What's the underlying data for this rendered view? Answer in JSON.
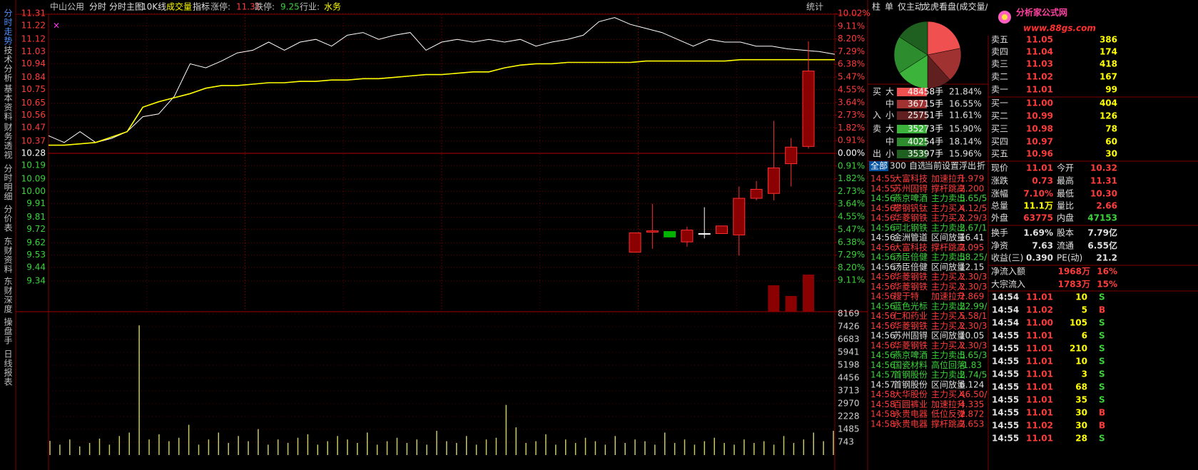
{
  "header": {
    "stock": "中山公用",
    "tabs": [
      "分时",
      "分时主图",
      "10K线",
      "成交量",
      "指标"
    ],
    "limit_up_label": "涨停:",
    "limit_up": "11.31",
    "limit_down_label": "跌停:",
    "limit_down": "9.25",
    "industry_label": "行业:",
    "industry": "水务",
    "stats_button": "统计"
  },
  "side_tabs": [
    "分时走势",
    "技术分析",
    "基本资料",
    "财务透视",
    "分时明细",
    "分价表",
    "东财资料",
    "东财深度",
    "操盘手",
    "日线报表"
  ],
  "right_tabs": [
    "柱",
    "单",
    "仅主动",
    "龙虎看盘(成交量/"
  ],
  "logo": {
    "title": "分析家公式网",
    "url": "www.88gs.com"
  },
  "flow_sides": [
    "买",
    "入",
    "卖",
    "出"
  ],
  "flow_rows": [
    {
      "size": "大",
      "hands": "48458手"
    },
    {
      "size": "中",
      "hands": "36715手"
    },
    {
      "size": "小",
      "hands": "25751手"
    },
    {
      "size": "大",
      "hands": "35273手"
    },
    {
      "size": "中",
      "hands": "40254手"
    },
    {
      "size": "小",
      "hands": "35397手"
    }
  ],
  "list_tabs": [
    "全部",
    "300",
    "自选",
    "当前",
    "设置",
    "浮出",
    "折"
  ],
  "news": [
    {
      "time": "14:55",
      "name": "大富科技",
      "type": "加速拉升",
      "value": "1.979",
      "color": "#ff3c3c"
    },
    {
      "time": "14:55",
      "name": "苏州固锝",
      "type": "撑杆跳高",
      "value": "2.200",
      "color": "#ff3c3c"
    },
    {
      "time": "14:56",
      "name": "燕京啤酒",
      "type": "主力卖出",
      "value": "5.65/5",
      "color": "#3cd23c"
    },
    {
      "time": "14:56",
      "name": "攀钢钒钛",
      "type": "主力买入",
      "value": "4.12/5",
      "color": "#ff3c3c"
    },
    {
      "time": "14:56",
      "name": "华菱钢铁",
      "type": "主力买入",
      "value": "2.29/3",
      "color": "#ff3c3c"
    },
    {
      "time": "14:56",
      "name": "河北钢铁",
      "type": "主力卖出",
      "value": "2.67/1",
      "color": "#3cd23c"
    },
    {
      "time": "14:56",
      "name": "金洲管道",
      "type": "区间放量",
      "value": "16.41",
      "color": "#e0e0e0"
    },
    {
      "time": "14:56",
      "name": "大富科技",
      "type": "撑杆跳高",
      "value": "2.095",
      "color": "#ff3c3c"
    },
    {
      "time": "14:56",
      "name": "汤臣倍健",
      "type": "主力卖出",
      "value": "58.25/",
      "color": "#3cd23c"
    },
    {
      "time": "14:56",
      "name": "汤臣倍健",
      "type": "区间放量",
      "value": "12.15",
      "color": "#e0e0e0"
    },
    {
      "time": "14:56",
      "name": "华菱钢铁",
      "type": "主力买入",
      "value": "2.30/3",
      "color": "#ff3c3c"
    },
    {
      "time": "14:56",
      "name": "华菱钢铁",
      "type": "主力买入",
      "value": "2.30/3",
      "color": "#ff3c3c"
    },
    {
      "time": "14:56",
      "name": "搜于特",
      "type": "加速拉升",
      "value": "2.869",
      "color": "#ff3c3c"
    },
    {
      "time": "14:56",
      "name": "蓝色光标",
      "type": "主力卖出",
      "value": "22.99/",
      "color": "#3cd23c"
    },
    {
      "time": "14:56",
      "name": "仁和药业",
      "type": "主力买入",
      "value": "5.58/1",
      "color": "#ff3c3c"
    },
    {
      "time": "14:56",
      "name": "华菱钢铁",
      "type": "主力买入",
      "value": "2.30/3",
      "color": "#ff3c3c"
    },
    {
      "time": "14:56",
      "name": "苏州固锝",
      "type": "区间放量",
      "value": "10.05",
      "color": "#e0e0e0"
    },
    {
      "time": "14:56",
      "name": "华菱钢铁",
      "type": "主力买入",
      "value": "2.30/3",
      "color": "#ff3c3c"
    },
    {
      "time": "14:56",
      "name": "燕京啤酒",
      "type": "主力卖出",
      "value": "5.65/3",
      "color": "#3cd23c"
    },
    {
      "time": "14:56",
      "name": "国瓷材料",
      "type": "高位回落",
      "value": "-1.83",
      "color": "#3cd23c"
    },
    {
      "time": "14:57",
      "name": "首钢股份",
      "type": "主力卖出",
      "value": "2.74/5",
      "color": "#3cd23c"
    },
    {
      "time": "14:57",
      "name": "首钢股份",
      "type": "区间放量",
      "value": "6.124",
      "color": "#e0e0e0"
    },
    {
      "time": "14:58",
      "name": "大华股份",
      "type": "主力买入",
      "value": "46.50/",
      "color": "#ff3c3c"
    },
    {
      "time": "14:58",
      "name": "百圆裤业",
      "type": "加速拉升",
      "value": "4.335",
      "color": "#ff3c3c"
    },
    {
      "time": "14:58",
      "name": "永贵电器",
      "type": "低位反弹",
      "value": "2.872",
      "color": "#ff3c3c"
    },
    {
      "time": "14:58",
      "name": "永贵电器",
      "type": "撑杆跳高",
      "value": "2.653",
      "color": "#ff3c3c"
    }
  ],
  "order_book": [
    {
      "label": "卖五",
      "price": "11.05",
      "volume": "386"
    },
    {
      "label": "卖四",
      "price": "11.04",
      "volume": "174"
    },
    {
      "label": "卖三",
      "price": "11.03",
      "volume": "418"
    },
    {
      "label": "卖二",
      "price": "11.02",
      "volume": "167"
    },
    {
      "label": "卖一",
      "price": "11.01",
      "volume": "99"
    },
    {
      "label": "买一",
      "price": "11.00",
      "volume": "404"
    },
    {
      "label": "买二",
      "price": "10.99",
      "volume": "126"
    },
    {
      "label": "买三",
      "price": "10.98",
      "volume": "78"
    },
    {
      "label": "买四",
      "price": "10.97",
      "volume": "60"
    },
    {
      "label": "买五",
      "price": "10.96",
      "volume": "30"
    }
  ],
  "stats": [
    [
      {
        "label": "现价",
        "value": "11.01",
        "color": "#ff3c3c"
      },
      {
        "label": "今开",
        "value": "10.32",
        "color": "#ff3c3c"
      }
    ],
    [
      {
        "label": "涨跌",
        "value": "0.73",
        "color": "#ff3c3c"
      },
      {
        "label": "最高",
        "value": "11.31",
        "color": "#ff3c3c"
      }
    ],
    [
      {
        "label": "涨幅",
        "value": "7.10%",
        "color": "#ff3c3c"
      },
      {
        "label": "最低",
        "value": "10.30",
        "color": "#ff3c3c"
      }
    ],
    [
      {
        "label": "总量",
        "value": "11.1万",
        "color": "#ffff00"
      },
      {
        "label": "量比",
        "value": "2.66",
        "color": "#ff3c3c"
      }
    ],
    [
      {
        "label": "外盘",
        "value": "63775",
        "color": "#ff3c3c"
      },
      {
        "label": "内盘",
        "value": "47153",
        "color": "#3cd23c"
      }
    ],
    [
      {
        "label": "换手",
        "value": "1.69%",
        "color": "#e0e0e0"
      },
      {
        "label": "股本",
        "value": "7.79亿",
        "color": "#e0e0e0"
      }
    ],
    [
      {
        "label": "净资",
        "value": "7.63",
        "color": "#e0e0e0"
      },
      {
        "label": "流通",
        "value": "6.55亿",
        "color": "#e0e0e0"
      }
    ],
    [
      {
        "label": "收益(三)",
        "value": "0.390",
        "color": "#e0e0e0"
      },
      {
        "label": "PE(动)",
        "value": "21.2",
        "color": "#e0e0e0"
      }
    ]
  ],
  "flows": [
    {
      "label": "净流入额",
      "value": "1968万",
      "share": "16%"
    },
    {
      "label": "大宗流入",
      "value": "1783万",
      "share": "15%"
    }
  ],
  "trades": [
    {
      "time": "14:54",
      "price": "11.01",
      "volume": "10",
      "side": "S"
    },
    {
      "time": "14:54",
      "price": "11.02",
      "volume": "5",
      "side": "B"
    },
    {
      "time": "14:54",
      "price": "11.00",
      "volume": "105",
      "side": "S"
    },
    {
      "time": "14:55",
      "price": "11.01",
      "volume": "6",
      "side": "S"
    },
    {
      "time": "14:55",
      "price": "11.01",
      "volume": "210",
      "side": "S"
    },
    {
      "time": "14:55",
      "price": "11.01",
      "volume": "10",
      "side": "S"
    },
    {
      "time": "14:55",
      "price": "11.01",
      "volume": "3",
      "side": "S"
    },
    {
      "time": "14:55",
      "price": "11.01",
      "volume": "68",
      "side": "S"
    },
    {
      "time": "14:55",
      "price": "11.01",
      "volume": "35",
      "side": "S"
    },
    {
      "time": "14:55",
      "price": "11.01",
      "volume": "30",
      "side": "B"
    },
    {
      "time": "14:55",
      "price": "11.02",
      "volume": "30",
      "side": "B"
    },
    {
      "time": "14:55",
      "price": "11.01",
      "volume": "28",
      "side": "S"
    }
  ],
  "chart_data": [
    {
      "type": "line",
      "ylim": [
        9.25,
        11.31
      ],
      "yticks": [
        11.31,
        11.22,
        11.12,
        11.03,
        10.94,
        10.84,
        10.75,
        10.65,
        10.56,
        10.47,
        10.37,
        10.28,
        10.19,
        10.09,
        {
          "value": 10,
          "label": "10.00"
        },
        9.91,
        9.81,
        9.72,
        9.62,
        9.53,
        9.44,
        9.34
      ],
      "y2lim": [
        -10.02,
        10.02
      ],
      "y2ticks": [
        {
          "value": 10.02,
          "label": "10.02%"
        },
        {
          "value": 9.11,
          "label": "9.11%"
        },
        {
          "value": 8.2,
          "label": "8.20%"
        },
        {
          "value": 7.29,
          "label": "7.29%"
        },
        {
          "value": 6.38,
          "label": "6.38%"
        },
        {
          "value": 5.47,
          "label": "5.47%"
        },
        {
          "value": 4.55,
          "label": "4.55%"
        },
        {
          "value": 3.64,
          "label": "3.64%"
        },
        {
          "value": 2.73,
          "label": "2.73%"
        },
        {
          "value": 1.82,
          "label": "1.82%"
        },
        {
          "value": 0.91,
          "label": "0.91%"
        },
        {
          "value": 0,
          "label": "0.00%"
        },
        {
          "value": -0.91,
          "label": "0.91%"
        },
        {
          "value": -1.82,
          "label": "1.82%"
        },
        {
          "value": -2.73,
          "label": "2.73%"
        },
        {
          "value": -3.64,
          "label": "3.64%"
        },
        {
          "value": -4.55,
          "label": "4.55%"
        },
        {
          "value": -5.47,
          "label": "5.47%"
        },
        {
          "value": -6.38,
          "label": "6.38%"
        },
        {
          "value": -7.29,
          "label": "7.29%"
        },
        {
          "value": -8.2,
          "label": "8.20%"
        },
        {
          "value": -9.11,
          "label": "9.11%"
        }
      ],
      "grid": true,
      "series": [
        {
          "color": "#ffffff",
          "values": [
            10.41,
            10.36,
            10.44,
            10.36,
            10.39,
            10.44,
            10.55,
            10.57,
            10.7,
            10.94,
            10.91,
            10.96,
            11.02,
            11.04,
            11.1,
            11.04,
            11.1,
            11.12,
            11.07,
            11.15,
            11.17,
            11.12,
            11.15,
            11.17,
            11.04,
            11.1,
            11.12,
            11.1,
            11.12,
            11.1,
            11.12,
            11.07,
            11.1,
            11.12,
            11.15,
            11.25,
            11.28,
            11.23,
            11.2,
            11.17,
            11.12,
            11.07,
            11.12,
            11.1,
            11.1,
            11.07,
            11.07,
            11.05,
            11.04,
            11.03,
            11.01
          ]
        },
        {
          "color": "#ffff00",
          "values": [
            10.34,
            10.34,
            10.35,
            10.36,
            10.4,
            10.44,
            10.62,
            10.66,
            10.69,
            10.72,
            10.76,
            10.78,
            10.78,
            10.79,
            10.8,
            10.8,
            10.81,
            10.81,
            10.82,
            10.82,
            10.83,
            10.83,
            10.84,
            10.85,
            10.86,
            10.86,
            10.87,
            10.88,
            10.88,
            10.91,
            10.93,
            10.94,
            10.94,
            10.95,
            10.95,
            10.95,
            10.95,
            10.95,
            10.96,
            10.96,
            10.96,
            10.96,
            10.96,
            10.96,
            10.97,
            10.97,
            10.97,
            10.97,
            10.97,
            10.97,
            10.97
          ]
        }
      ]
    },
    {
      "type": "bar",
      "color": "#c8c864",
      "ylim": [
        0,
        8169
      ],
      "yticks": [
        8169,
        7426,
        6683,
        5941,
        5198,
        4456,
        3713,
        2970,
        2228,
        1485,
        743
      ],
      "values": [
        820,
        600,
        900,
        500,
        700,
        950,
        600,
        1100,
        1300,
        7500,
        900,
        1200,
        800,
        1000,
        1750,
        600,
        900,
        1300,
        700,
        1100,
        800,
        1500,
        600,
        900,
        700,
        1000,
        1200,
        600,
        800,
        1100,
        900,
        700,
        1300,
        600,
        800,
        1000,
        700,
        900,
        600,
        1400,
        800,
        700,
        1100,
        600,
        900,
        1000,
        2900,
        1600,
        700,
        800,
        1200,
        600,
        900,
        700,
        1000,
        800,
        600,
        1100,
        700,
        900,
        800,
        600,
        1300,
        700,
        900,
        600,
        800,
        1000,
        700,
        600,
        900,
        700,
        800,
        600,
        1100,
        700,
        900,
        1300,
        800,
        1400
      ]
    },
    {
      "type": "candlestick",
      "ylim": [
        9.5,
        12.8
      ],
      "up_color": "#8b0000",
      "down_color": "#00b400",
      "flat_color": "#ffffff",
      "open": [
        9.72,
        10.01,
        10.02,
        9.87,
        9.99,
        9.99,
        9.97,
        10.5,
        10.57,
        11.0,
        11.25
      ],
      "high": [
        10.0,
        10.42,
        10.02,
        10.09,
        10.37,
        10.1,
        10.67,
        10.75,
        11.62,
        11.37,
        12.77
      ],
      "low": [
        9.72,
        9.77,
        9.94,
        9.8,
        9.92,
        9.99,
        9.67,
        10.47,
        10.47,
        10.67,
        11.22
      ],
      "close": [
        10.0,
        10.03,
        9.94,
        10.04,
        9.99,
        10.1,
        10.5,
        10.63,
        10.94,
        11.24,
        12.34
      ],
      "volume": [
        null,
        null,
        null,
        null,
        null,
        null,
        null,
        null,
        37,
        22,
        52
      ],
      "volume_ylim": [
        0,
        60
      ]
    },
    {
      "type": "pie",
      "values": [
        21.84,
        16.55,
        11.61,
        15.9,
        18.14,
        15.96
      ],
      "value_labels": [
        "21.84%",
        "16.55%",
        "11.61%",
        "15.90%",
        "18.14%",
        "15.96%"
      ],
      "colors": [
        "#f05050",
        "#a03232",
        "#602020",
        "#3cb43c",
        "#2d8c2d",
        "#1f5f1f"
      ]
    }
  ]
}
